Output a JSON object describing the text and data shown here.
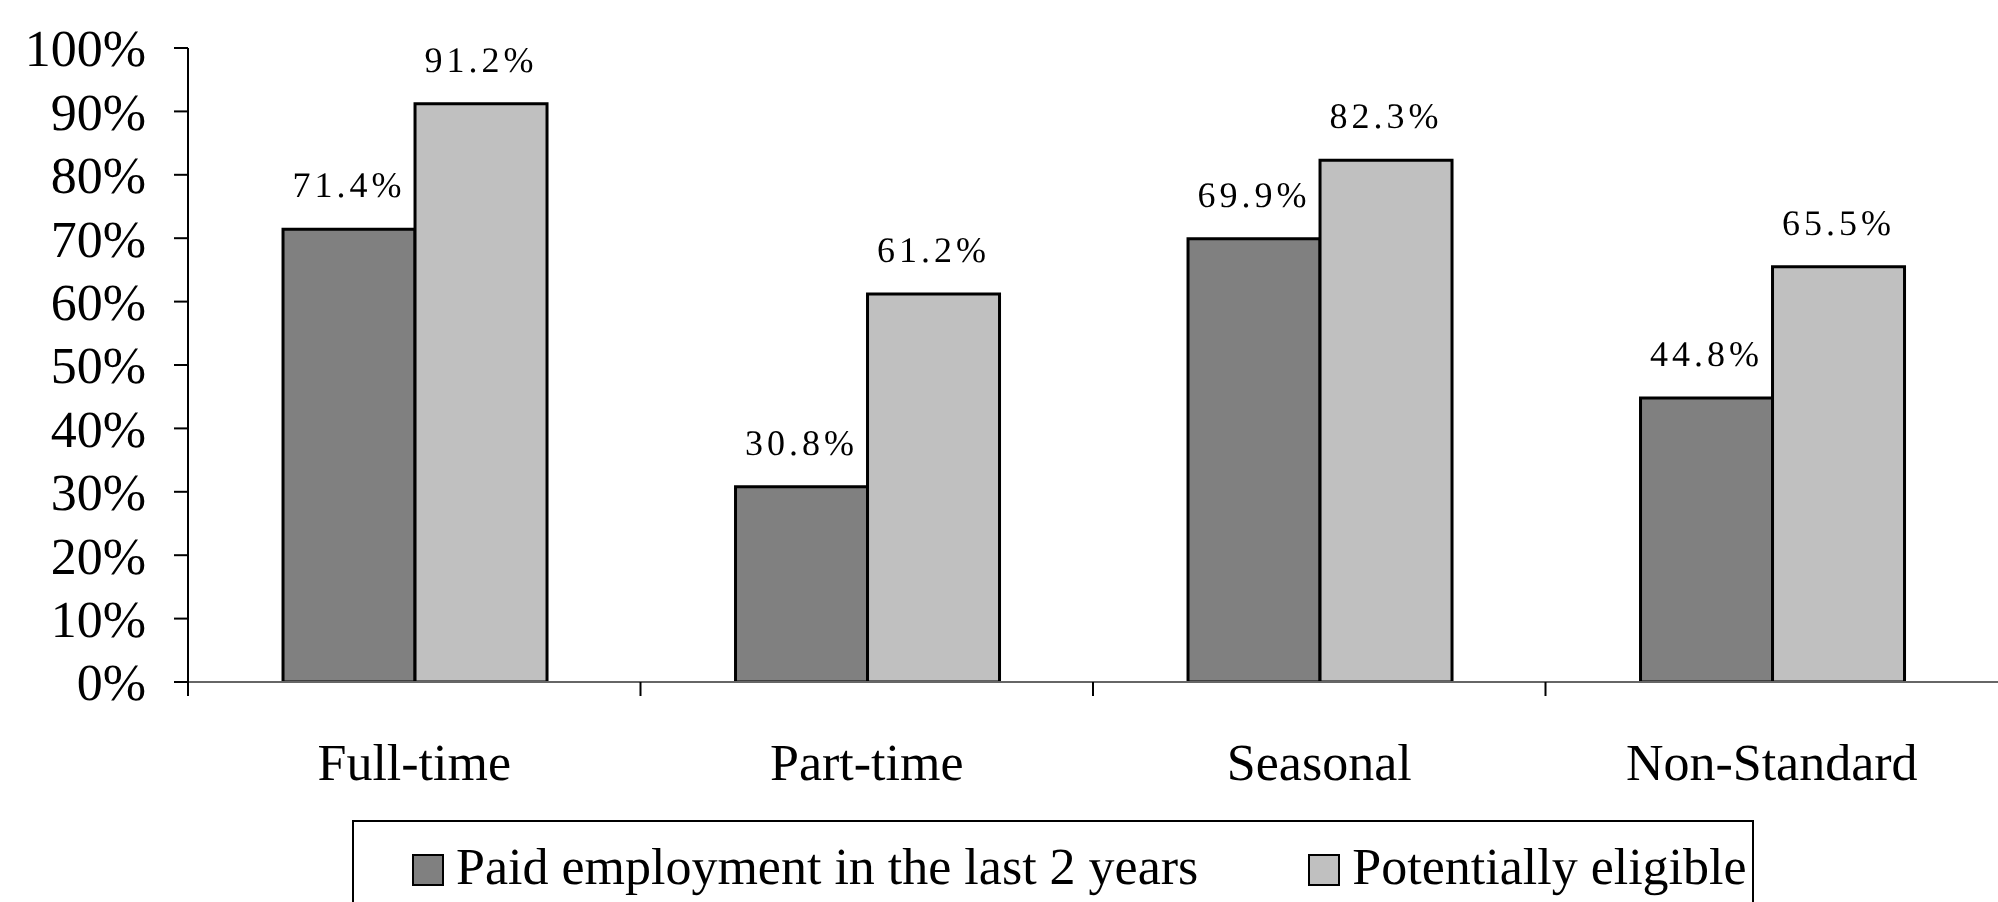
{
  "chart_data": {
    "type": "bar",
    "categories": [
      "Full-time",
      "Part-time",
      "Seasonal",
      "Non-Standard"
    ],
    "series": [
      {
        "name": "Paid employment in the last 2 years",
        "color": "#808080",
        "values": [
          71.4,
          30.8,
          69.9,
          44.8
        ],
        "value_labels": [
          "71.4%",
          "30.8%",
          "69.9%",
          "44.8%"
        ]
      },
      {
        "name": "Potentially eligible",
        "color": "#c0c0c0",
        "values": [
          91.2,
          61.2,
          82.3,
          65.5
        ],
        "value_labels": [
          "91.2%",
          "61.2%",
          "82.3%",
          "65.5%"
        ]
      }
    ],
    "ylim": [
      0,
      100
    ],
    "yticks": [
      {
        "value": 0,
        "label": "0%"
      },
      {
        "value": 10,
        "label": "10%"
      },
      {
        "value": 20,
        "label": "20%"
      },
      {
        "value": 30,
        "label": "30%"
      },
      {
        "value": 40,
        "label": "40%"
      },
      {
        "value": 50,
        "label": "50%"
      },
      {
        "value": 60,
        "label": "60%"
      },
      {
        "value": 70,
        "label": "70%"
      },
      {
        "value": 80,
        "label": "80%"
      },
      {
        "value": 90,
        "label": "90%"
      },
      {
        "value": 100,
        "label": "100%"
      }
    ],
    "legend": "bottom"
  }
}
